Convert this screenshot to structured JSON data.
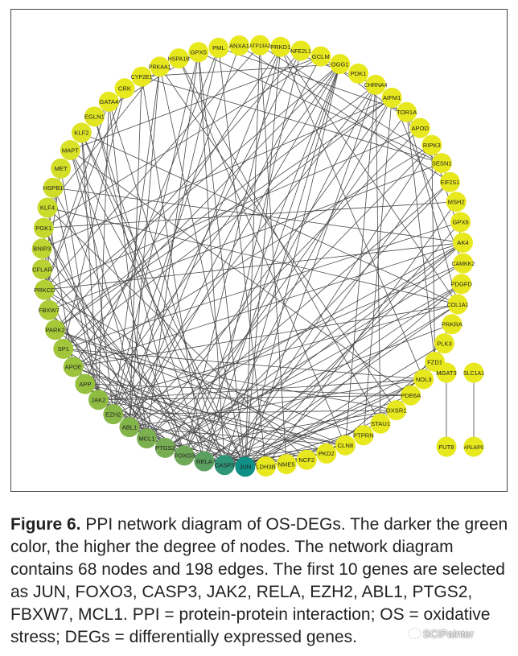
{
  "figure": {
    "label": "Figure 6.",
    "caption": "PPI network diagram of OS-DEGs. The darker the green color, the higher the degree of nodes. The network diagram contains 68 nodes and 198 edges. The first 10 genes are selected as JUN, FOXO3, CASP3, JAK2, RELA, EZH2, ABL1, PTGS2, FBXW7, MCL1. PPI = protein-protein interaction; OS = oxidative stress; DEGs = differentially expressed genes."
  },
  "watermark": "SCIPainter",
  "colors": {
    "low_degree": "#e8e81e",
    "mid_degree": "#9cc73a",
    "high_degree": "#0f8f86",
    "edge": "#4a4a4a",
    "border": "#444444"
  },
  "network": {
    "node_count": 68,
    "edge_count": 198,
    "top_genes": [
      "JUN",
      "FOXO3",
      "CASP3",
      "JAK2",
      "RELA",
      "EZH2",
      "ABL1",
      "PTGS2",
      "FBXW7",
      "MCL1"
    ],
    "circle_nodes": [
      {
        "label": "JUN",
        "color": "#0f8f86"
      },
      {
        "label": "LDH3B",
        "color": "#e8e81e"
      },
      {
        "label": "NME5",
        "color": "#e8e81e"
      },
      {
        "label": "NCF2",
        "color": "#e8e81e"
      },
      {
        "label": "PKD2",
        "color": "#e8e81e"
      },
      {
        "label": "CLN8",
        "color": "#e8e81e"
      },
      {
        "label": "PTPRN",
        "color": "#e8e81e"
      },
      {
        "label": "STAU1",
        "color": "#e8e81e"
      },
      {
        "label": "OXSR1",
        "color": "#e8e81e"
      },
      {
        "label": "PDE6A",
        "color": "#e8e81e"
      },
      {
        "label": "NOL3",
        "color": "#e8e81e"
      },
      {
        "label": "FZD1",
        "color": "#e8e81e"
      },
      {
        "label": "PLK3",
        "color": "#e8e81e"
      },
      {
        "label": "PRKRA",
        "color": "#e8e81e"
      },
      {
        "label": "COL1A1",
        "color": "#e8e81e"
      },
      {
        "label": "PDGFD",
        "color": "#e8e81e"
      },
      {
        "label": "CAMKK2",
        "color": "#e8e81e"
      },
      {
        "label": "AK4",
        "color": "#e8e81e"
      },
      {
        "label": "GPX6",
        "color": "#e8e81e"
      },
      {
        "label": "MSH2",
        "color": "#e8e81e"
      },
      {
        "label": "EIF2S1",
        "color": "#e8e81e"
      },
      {
        "label": "SESN1",
        "color": "#e8e81e"
      },
      {
        "label": "RIPK3",
        "color": "#e8e81e"
      },
      {
        "label": "APOD",
        "color": "#e8e81e"
      },
      {
        "label": "TOR1A",
        "color": "#e8e81e"
      },
      {
        "label": "AIFM1",
        "color": "#e8e81e"
      },
      {
        "label": "CHRNA4",
        "color": "#e8e81e"
      },
      {
        "label": "PDK1",
        "color": "#e8e81e"
      },
      {
        "label": "OGG1",
        "color": "#e8e81e"
      },
      {
        "label": "GCLM",
        "color": "#e8e81e"
      },
      {
        "label": "NFE2L1",
        "color": "#e8e81e"
      },
      {
        "label": "PRKD1",
        "color": "#e8e81e"
      },
      {
        "label": "ATP13A2",
        "color": "#e8e81e"
      },
      {
        "label": "ANXA1",
        "color": "#e8e81e"
      },
      {
        "label": "PML",
        "color": "#e8e81e"
      },
      {
        "label": "GPX5",
        "color": "#e8e81e"
      },
      {
        "label": "HSPA1B",
        "color": "#e8e81e"
      },
      {
        "label": "PRKAA1",
        "color": "#e8e81e"
      },
      {
        "label": "CYP2E1",
        "color": "#e8e81e"
      },
      {
        "label": "CRK",
        "color": "#e8e81e"
      },
      {
        "label": "GATA4",
        "color": "#e5e81f"
      },
      {
        "label": "EGLN1",
        "color": "#e2e621"
      },
      {
        "label": "KLF2",
        "color": "#dee424"
      },
      {
        "label": "MAPT",
        "color": "#d9e226"
      },
      {
        "label": "MET",
        "color": "#d4df28"
      },
      {
        "label": "HSPB1",
        "color": "#cfdc2a"
      },
      {
        "label": "KLF4",
        "color": "#cadb2c"
      },
      {
        "label": "PGK1",
        "color": "#c4d82e"
      },
      {
        "label": "BNIP3",
        "color": "#bfd530"
      },
      {
        "label": "CFLAR",
        "color": "#b9d232"
      },
      {
        "label": "PRKCD",
        "color": "#b3cf34"
      },
      {
        "label": "FBXW7",
        "color": "#accc36"
      },
      {
        "label": "PARK2",
        "color": "#a7c938"
      },
      {
        "label": "SP1",
        "color": "#a2c63a"
      },
      {
        "label": "APOE",
        "color": "#9cc33c"
      },
      {
        "label": "APP",
        "color": "#96c13e"
      },
      {
        "label": "JAK2",
        "color": "#8fbd42"
      },
      {
        "label": "EZH2",
        "color": "#88b946"
      },
      {
        "label": "ABL1",
        "color": "#82b44a"
      },
      {
        "label": "MCL1",
        "color": "#7cb04e"
      },
      {
        "label": "PTGS2",
        "color": "#76ad52"
      },
      {
        "label": "FOXO3",
        "color": "#6fa856"
      },
      {
        "label": "RELA",
        "color": "#5aa05f"
      },
      {
        "label": "CASP3",
        "color": "#2e9575"
      }
    ],
    "pair_nodes": [
      {
        "label": "MGAT3",
        "color": "#e8e81e"
      },
      {
        "label": "FUT8",
        "color": "#e8e81e"
      },
      {
        "label": "SLC1A1",
        "color": "#e8e81e"
      },
      {
        "label": "ARL6IP5",
        "color": "#e8e81e"
      }
    ]
  }
}
